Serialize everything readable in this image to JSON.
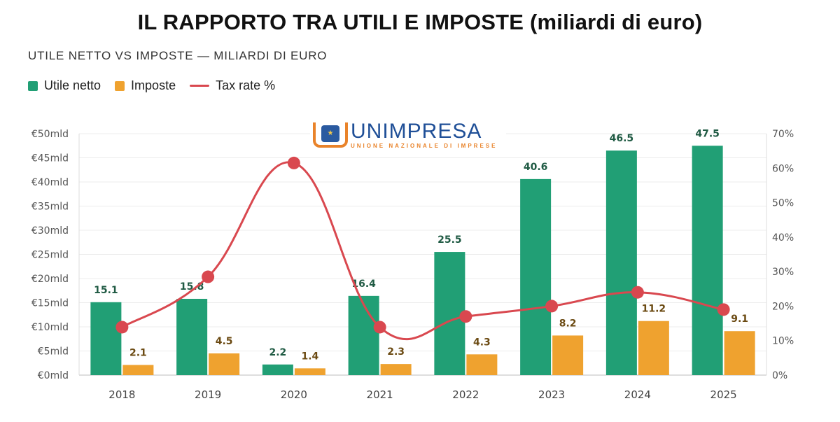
{
  "header": {
    "title": "IL RAPPORTO TRA UTILI E IMPOSTE (miliardi di euro)",
    "subtitle": "UTILE NETTO VS IMPOSTE — MILIARDI DI EURO"
  },
  "logo": {
    "name": "UNIMPRESA",
    "tagline": "UNIONE NAZIONALE DI IMPRESE"
  },
  "colors": {
    "utile": "#219f75",
    "imposte": "#efa22f",
    "tax": "#d9484f",
    "utile_label": "#1f5a43",
    "imposte_label": "#6b4a12"
  },
  "chart_data": {
    "type": "bar",
    "categories": [
      "2018",
      "2019",
      "2020",
      "2021",
      "2022",
      "2023",
      "2024",
      "2025"
    ],
    "series": [
      {
        "name": "Utile netto",
        "type": "bar",
        "axis": "left",
        "values": [
          15.1,
          15.8,
          2.2,
          16.4,
          25.5,
          40.6,
          46.5,
          47.5
        ]
      },
      {
        "name": "Imposte",
        "type": "bar",
        "axis": "left",
        "values": [
          2.1,
          4.5,
          1.4,
          2.3,
          4.3,
          8.2,
          11.2,
          9.1
        ]
      },
      {
        "name": "Tax rate %",
        "type": "line",
        "axis": "right",
        "values": [
          13.9,
          28.5,
          61.5,
          13.9,
          17.0,
          20.0,
          24.0,
          19.0
        ]
      }
    ],
    "y_left": {
      "ylim": [
        0,
        50
      ],
      "ticks": [
        "€0mld",
        "€5mld",
        "€10mld",
        "€15mld",
        "€20mld",
        "€25mld",
        "€30mld",
        "€35mld",
        "€40mld",
        "€45mld",
        "€50mld"
      ]
    },
    "y_right": {
      "ylim": [
        0,
        70
      ],
      "ticks": [
        "0%",
        "10%",
        "20%",
        "30%",
        "40%",
        "50%",
        "60%",
        "70%"
      ]
    },
    "grid": true,
    "legend": "top-left"
  }
}
